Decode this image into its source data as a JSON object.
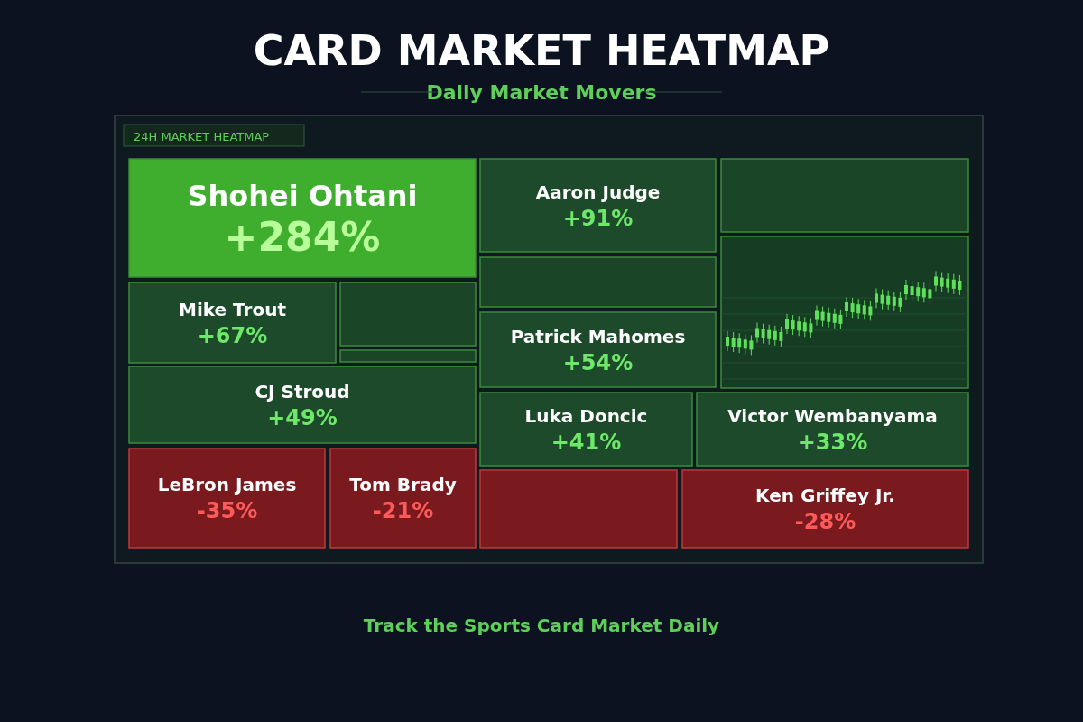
{
  "chart_data": {
    "type": "other",
    "title": "CARD MARKET HEATMAP",
    "subtitle": "Daily Market Movers",
    "annotations": [
      "24H MARKET HEATMAP",
      "Track the Sports Card Market Daily"
    ],
    "categories": [
      "Shohei Ohtani",
      "Aaron Judge",
      "Mike Trout",
      "Patrick Mahomes",
      "CJ Stroud",
      "Luka Doncic",
      "Victor Wembanyama",
      "LeBron James",
      "Tom Brady",
      "Ken Griffey Jr."
    ],
    "values": [
      284,
      91,
      67,
      54,
      49,
      41,
      33,
      -35,
      -21,
      -28
    ],
    "value_labels": [
      "+284%",
      "+91%",
      "+67%",
      "+54%",
      "+49%",
      "+41%",
      "+33%",
      "-35%",
      "-21%",
      "-28%"
    ],
    "colors": [
      "#3fae2e",
      "#1d4a2a",
      "#1d4a2a",
      "#1d4a2a",
      "#1d4a2a",
      "#1d4a2a",
      "#1d4a2a",
      "#7a1a1e",
      "#7a1a1e",
      "#7a1a1e"
    ]
  }
}
